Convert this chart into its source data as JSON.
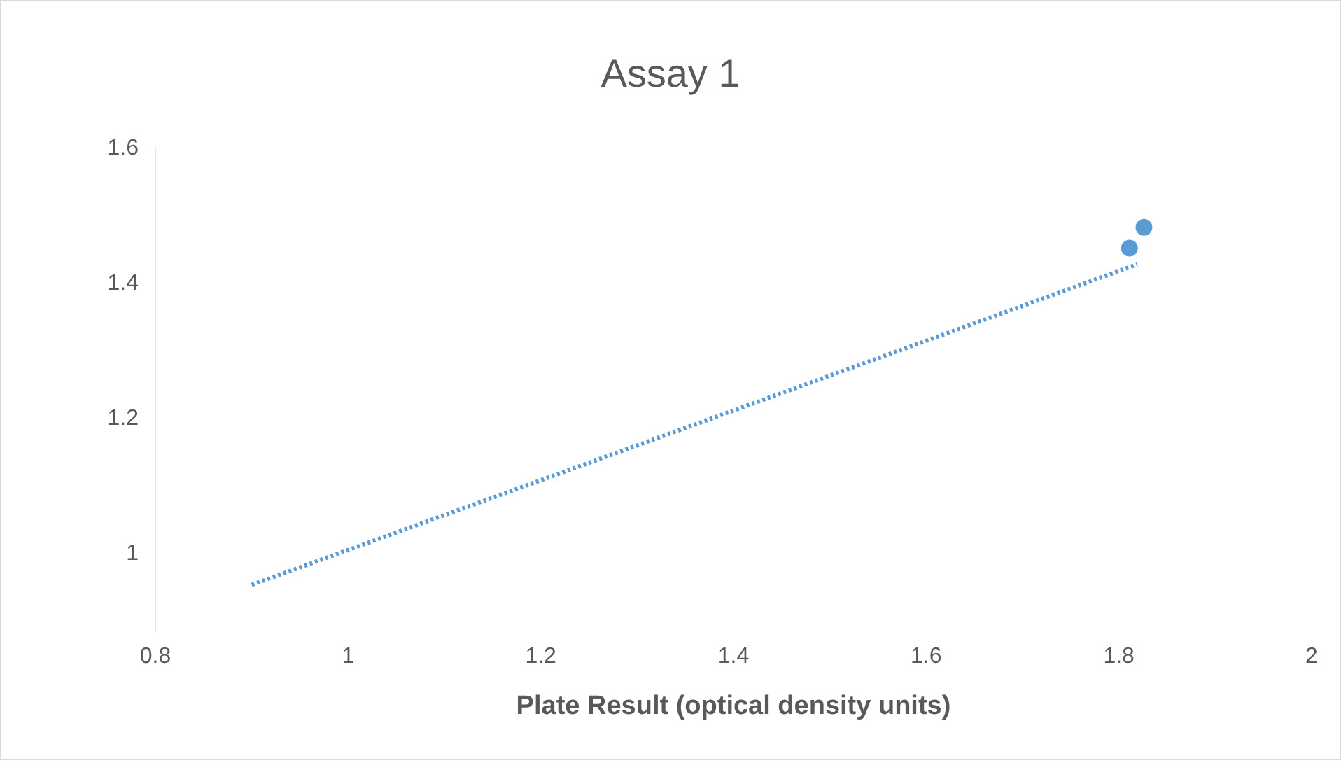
{
  "chart_data": {
    "type": "scatter",
    "title": "Assay 1",
    "xlabel": "Plate Result (optical density units)",
    "xlim": [
      0.8,
      2
    ],
    "xticks": [
      0.8,
      1,
      1.2,
      1.4,
      1.6,
      1.8,
      2
    ],
    "ylim": [
      0.88,
      1.6
    ],
    "yticks": [
      1,
      1.2,
      1.4,
      1.6
    ],
    "series": [
      {
        "color": "#5b9bd5",
        "marker": "circle",
        "x": [
          1.811,
          1.826
        ],
        "values": [
          1.45,
          1.481
        ]
      },
      {
        "type": "line",
        "color": "#5b9bd5",
        "line_style": "dotted",
        "x": [
          0.9,
          1.819
        ],
        "values": [
          0.951,
          1.426
        ]
      }
    ]
  }
}
